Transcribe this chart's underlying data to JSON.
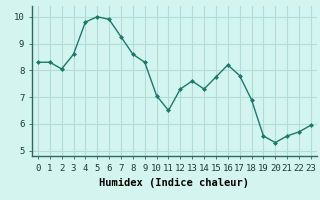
{
  "x": [
    0,
    1,
    2,
    3,
    4,
    5,
    6,
    7,
    8,
    9,
    10,
    11,
    12,
    13,
    14,
    15,
    16,
    17,
    18,
    19,
    20,
    21,
    22,
    23
  ],
  "y": [
    8.3,
    8.3,
    8.05,
    8.6,
    9.8,
    10.0,
    9.9,
    9.25,
    8.6,
    8.3,
    7.05,
    6.5,
    7.3,
    7.6,
    7.3,
    7.75,
    8.2,
    7.8,
    6.9,
    5.55,
    5.3,
    5.55,
    5.7,
    5.95
  ],
  "line_color": "#1a7a6a",
  "marker": "D",
  "marker_size": 2.0,
  "line_width": 1.0,
  "xlabel": "Humidex (Indice chaleur)",
  "ylim": [
    4.8,
    10.4
  ],
  "xlim": [
    -0.5,
    23.5
  ],
  "yticks": [
    5,
    6,
    7,
    8,
    9,
    10
  ],
  "xticks": [
    0,
    1,
    2,
    3,
    4,
    5,
    6,
    7,
    8,
    9,
    10,
    11,
    12,
    13,
    14,
    15,
    16,
    17,
    18,
    19,
    20,
    21,
    22,
    23
  ],
  "background_color": "#d4f5ef",
  "grid_color": "#b0ddd8",
  "tick_fontsize": 6.5,
  "label_fontsize": 7.5
}
